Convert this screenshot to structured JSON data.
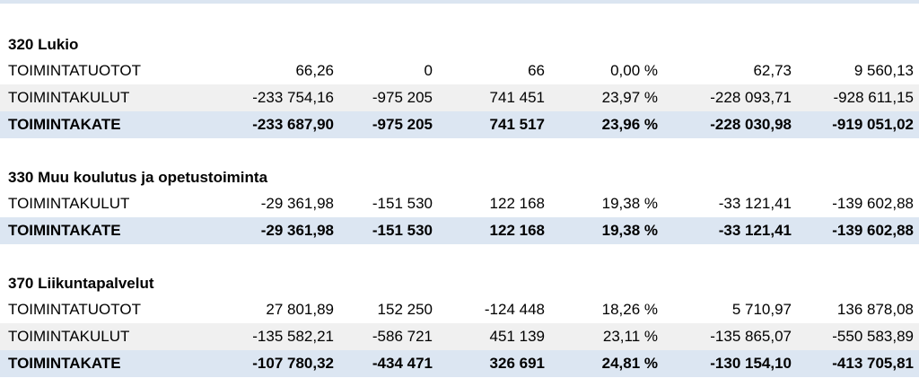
{
  "sections": [
    {
      "title": "320 Lukio",
      "rows": [
        {
          "label": "TOIMINTATUOTOT",
          "v": [
            "66,26",
            "0",
            "66",
            "0,00 %",
            "62,73",
            "9 560,13"
          ]
        },
        {
          "label": "TOIMINTAKULUT",
          "v": [
            "-233 754,16",
            "-975 205",
            "741 451",
            "23,97 %",
            "-228 093,71",
            "-928 611,15"
          ]
        },
        {
          "label": "TOIMINTAKATE",
          "v": [
            "-233 687,90",
            "-975 205",
            "741 517",
            "23,96 %",
            "-228 030,98",
            "-919 051,02"
          ]
        }
      ]
    },
    {
      "title": "330 Muu koulutus ja opetustoiminta",
      "rows": [
        {
          "label": "TOIMINTAKULUT",
          "v": [
            "-29 361,98",
            "-151 530",
            "122 168",
            "19,38 %",
            "-33 121,41",
            "-139 602,88"
          ]
        },
        {
          "label": "TOIMINTAKATE",
          "v": [
            "-29 361,98",
            "-151 530",
            "122 168",
            "19,38 %",
            "-33 121,41",
            "-139 602,88"
          ]
        }
      ]
    },
    {
      "title": "370 Liikuntapalvelut",
      "rows": [
        {
          "label": "TOIMINTATUOTOT",
          "v": [
            "27 801,89",
            "152 250",
            "-124 448",
            "18,26 %",
            "5 710,97",
            "136 878,08"
          ]
        },
        {
          "label": "TOIMINTAKULUT",
          "v": [
            "-135 582,21",
            "-586 721",
            "451 139",
            "23,11 %",
            "-135 865,07",
            "-550 583,89"
          ]
        },
        {
          "label": "TOIMINTAKATE",
          "v": [
            "-107 780,32",
            "-434 471",
            "326 691",
            "24,81 %",
            "-130 154,10",
            "-413 705,81"
          ]
        }
      ]
    }
  ]
}
